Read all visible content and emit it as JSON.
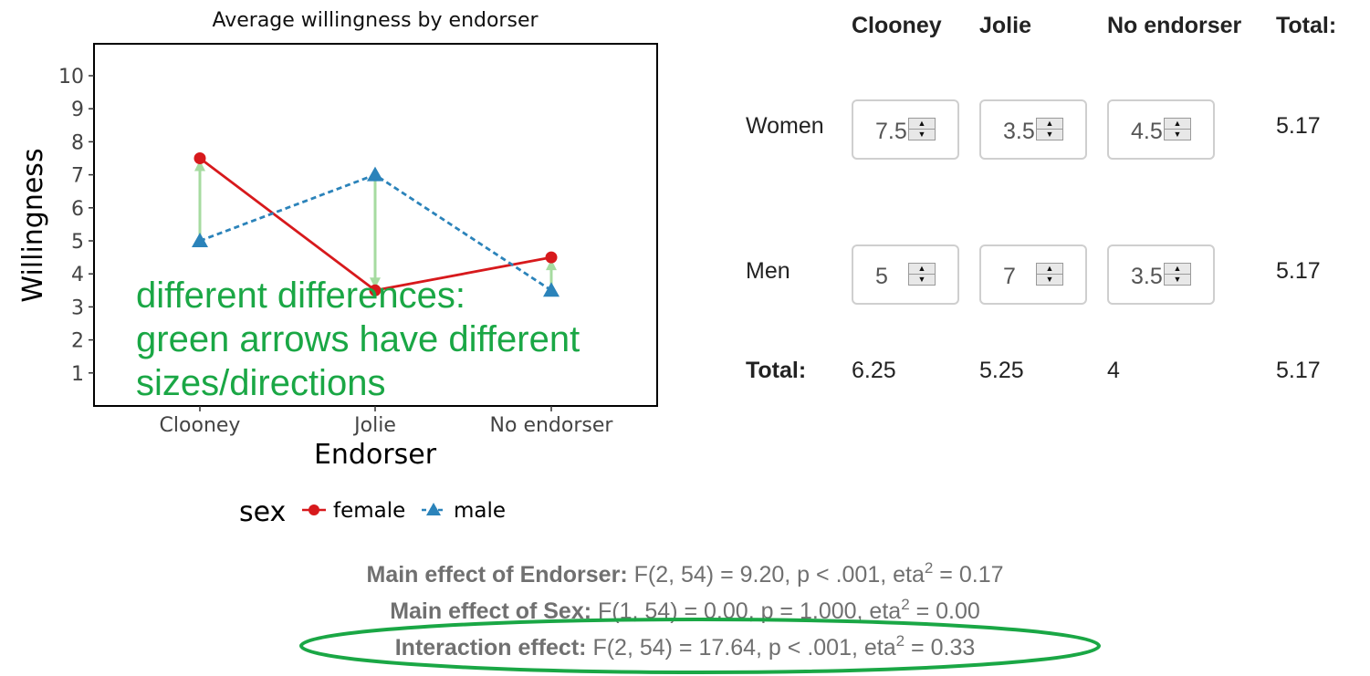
{
  "chart_data": {
    "type": "line",
    "title": "Average willingness by endorser",
    "xlabel": "Endorser",
    "ylabel": "Willingness",
    "categories": [
      "Clooney",
      "Jolie",
      "No endorser"
    ],
    "yticks": [
      "1",
      "2",
      "3",
      "4",
      "5",
      "6",
      "7",
      "8",
      "9",
      "10"
    ],
    "ylim": [
      0,
      10.5
    ],
    "series": [
      {
        "name": "female",
        "values": [
          7.5,
          3.5,
          4.5
        ],
        "color": "#d7191c",
        "marker": "circle",
        "dash": "solid"
      },
      {
        "name": "male",
        "values": [
          5,
          7,
          3.5
        ],
        "color": "#2b83ba",
        "marker": "triangle",
        "dash": "dashed"
      }
    ],
    "legend": {
      "title": "sex",
      "placement": "bottom"
    },
    "difference_arrows_color": "#a6dba0",
    "annotation": [
      "different differences:",
      "green arrows have different",
      "sizes/directions"
    ],
    "annotation_color": "#1aa745",
    "grid": false
  },
  "table": {
    "columns": [
      "Clooney",
      "Jolie",
      "No endorser",
      "Total:"
    ],
    "rows": [
      {
        "label": "Women",
        "values": [
          "7.5",
          "3.5",
          "4.5"
        ],
        "total": "5.17"
      },
      {
        "label": "Men",
        "values": [
          "5",
          "7",
          "3.5"
        ],
        "total": "5.17"
      }
    ],
    "totals_label": "Total:",
    "totals": [
      "6.25",
      "5.25",
      "4",
      "5.17"
    ],
    "spinner_up_icon": "▲",
    "spinner_down_icon": "▼"
  },
  "stats": {
    "main_endorser_label": "Main effect of Endorser:",
    "main_endorser_value": "F(2, 54) = 9.20, p < .001, eta",
    "main_endorser_sup": "2",
    "main_endorser_tail": "= 0.17",
    "main_sex_label": "Main effect of Sex:",
    "main_sex_value": "F(1, 54) = 0.00, p = 1.000, eta",
    "main_sex_sup": "2",
    "main_sex_tail": "= 0.00",
    "interaction_label": "Interaction effect:",
    "interaction_value": "F(2, 54) = 17.64, p < .001, eta",
    "interaction_sup": "2",
    "interaction_tail": "= 0.33",
    "highlight_color": "#1aa745"
  }
}
